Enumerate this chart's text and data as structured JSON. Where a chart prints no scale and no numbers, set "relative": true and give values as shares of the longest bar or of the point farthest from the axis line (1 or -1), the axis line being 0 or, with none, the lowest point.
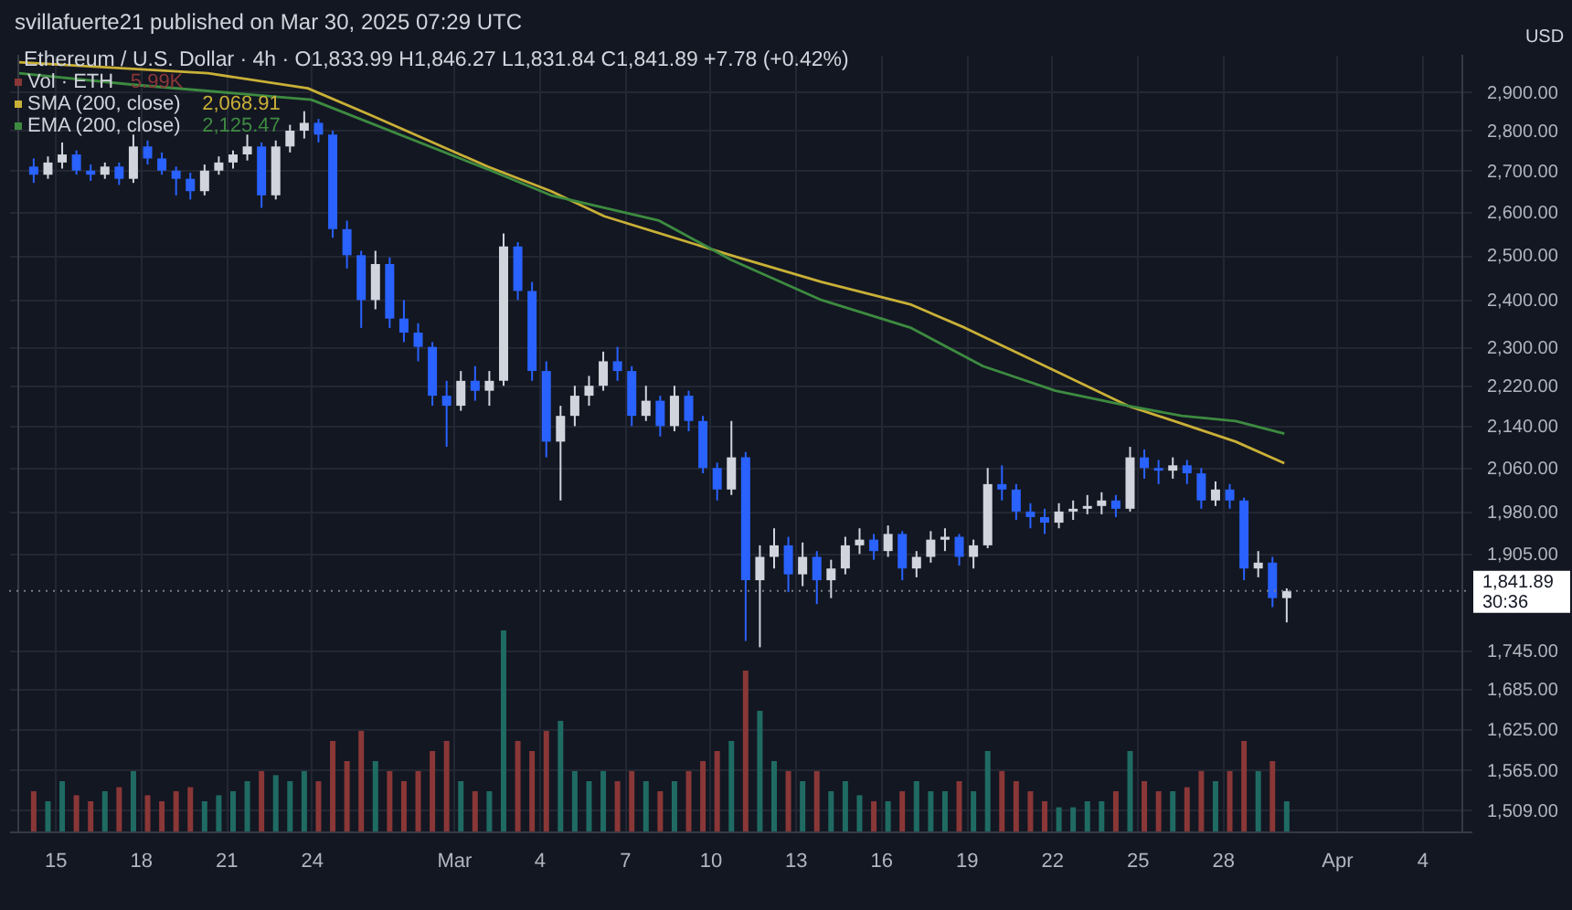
{
  "chart_data": [
    {
      "type": "candlestick",
      "title": "Ethereum / U.S. Dollar · 4h · O1,833.99 H1,846.27 L1,831.84 C1,841.89 +7.78 (+0.42%)",
      "subtitle": "svillafuerte21 published on Mar 30, 2025 07:29 UTC",
      "x": [
        "2025-02-14T06:00",
        "2025-02-14T18:00",
        "2025-02-15T06:00",
        "2025-02-15T18:00",
        "2025-02-16T06:00",
        "2025-02-16T18:00",
        "2025-02-17T06:00",
        "2025-02-17T18:00",
        "2025-02-18T06:00",
        "2025-02-18T18:00",
        "2025-02-19T06:00",
        "2025-02-19T18:00",
        "2025-02-20T06:00",
        "2025-02-20T18:00",
        "2025-02-21T06:00",
        "2025-02-21T18:00",
        "2025-02-22T06:00",
        "2025-02-22T18:00",
        "2025-02-23T06:00",
        "2025-02-23T18:00",
        "2025-02-24T06:00",
        "2025-02-24T18:00",
        "2025-02-25T06:00",
        "2025-02-25T18:00",
        "2025-02-26T06:00",
        "2025-02-26T18:00",
        "2025-02-27T06:00",
        "2025-02-27T18:00",
        "2025-02-28T06:00",
        "2025-02-28T18:00",
        "2025-03-01T06:00",
        "2025-03-01T18:00",
        "2025-03-02T06:00",
        "2025-03-02T18:00",
        "2025-03-03T06:00",
        "2025-03-03T18:00",
        "2025-03-04T06:00",
        "2025-03-04T18:00",
        "2025-03-05T06:00",
        "2025-03-05T18:00",
        "2025-03-06T06:00",
        "2025-03-06T18:00",
        "2025-03-07T06:00",
        "2025-03-07T18:00",
        "2025-03-08T06:00",
        "2025-03-08T18:00",
        "2025-03-09T06:00",
        "2025-03-09T18:00",
        "2025-03-10T06:00",
        "2025-03-10T18:00",
        "2025-03-11T06:00",
        "2025-03-11T18:00",
        "2025-03-12T06:00",
        "2025-03-12T18:00",
        "2025-03-13T06:00",
        "2025-03-13T18:00",
        "2025-03-14T06:00",
        "2025-03-14T18:00",
        "2025-03-15T06:00",
        "2025-03-15T18:00",
        "2025-03-16T06:00",
        "2025-03-16T18:00",
        "2025-03-17T06:00",
        "2025-03-17T18:00",
        "2025-03-18T06:00",
        "2025-03-18T18:00",
        "2025-03-19T06:00",
        "2025-03-19T18:00",
        "2025-03-20T06:00",
        "2025-03-20T18:00",
        "2025-03-21T06:00",
        "2025-03-21T18:00",
        "2025-03-22T06:00",
        "2025-03-22T18:00",
        "2025-03-23T06:00",
        "2025-03-23T18:00",
        "2025-03-24T06:00",
        "2025-03-24T18:00",
        "2025-03-25T06:00",
        "2025-03-25T18:00",
        "2025-03-26T06:00",
        "2025-03-26T18:00",
        "2025-03-27T06:00",
        "2025-03-27T18:00",
        "2025-03-28T06:00",
        "2025-03-28T18:00",
        "2025-03-29T06:00",
        "2025-03-29T18:00",
        "2025-03-30T06:00"
      ],
      "ohlc": [
        [
          2710,
          2730,
          2670,
          2690
        ],
        [
          2690,
          2735,
          2680,
          2720
        ],
        [
          2720,
          2770,
          2705,
          2740
        ],
        [
          2740,
          2750,
          2690,
          2700
        ],
        [
          2700,
          2715,
          2675,
          2690
        ],
        [
          2690,
          2720,
          2680,
          2710
        ],
        [
          2710,
          2720,
          2665,
          2680
        ],
        [
          2680,
          2790,
          2670,
          2760
        ],
        [
          2760,
          2775,
          2715,
          2730
        ],
        [
          2730,
          2745,
          2690,
          2700
        ],
        [
          2700,
          2710,
          2640,
          2680
        ],
        [
          2680,
          2695,
          2630,
          2650
        ],
        [
          2650,
          2715,
          2640,
          2700
        ],
        [
          2700,
          2735,
          2690,
          2720
        ],
        [
          2720,
          2750,
          2705,
          2740
        ],
        [
          2740,
          2790,
          2725,
          2760
        ],
        [
          2760,
          2770,
          2610,
          2640
        ],
        [
          2640,
          2775,
          2630,
          2760
        ],
        [
          2760,
          2815,
          2745,
          2800
        ],
        [
          2800,
          2850,
          2780,
          2820
        ],
        [
          2820,
          2830,
          2770,
          2790
        ],
        [
          2790,
          2800,
          2540,
          2560
        ],
        [
          2560,
          2580,
          2470,
          2500
        ],
        [
          2500,
          2510,
          2340,
          2400
        ],
        [
          2400,
          2510,
          2380,
          2480
        ],
        [
          2480,
          2495,
          2340,
          2360
        ],
        [
          2360,
          2400,
          2310,
          2330
        ],
        [
          2330,
          2350,
          2270,
          2300
        ],
        [
          2300,
          2310,
          2180,
          2200
        ],
        [
          2200,
          2230,
          2100,
          2180
        ],
        [
          2180,
          2250,
          2170,
          2230
        ],
        [
          2230,
          2260,
          2190,
          2210
        ],
        [
          2210,
          2250,
          2180,
          2230
        ],
        [
          2230,
          2550,
          2220,
          2520
        ],
        [
          2520,
          2530,
          2400,
          2420
        ],
        [
          2420,
          2440,
          2230,
          2250
        ],
        [
          2250,
          2270,
          2080,
          2110
        ],
        [
          2110,
          2180,
          2000,
          2160
        ],
        [
          2160,
          2220,
          2140,
          2200
        ],
        [
          2200,
          2240,
          2180,
          2220
        ],
        [
          2220,
          2290,
          2210,
          2270
        ],
        [
          2270,
          2300,
          2230,
          2250
        ],
        [
          2250,
          2260,
          2140,
          2160
        ],
        [
          2160,
          2220,
          2150,
          2190
        ],
        [
          2190,
          2200,
          2120,
          2140
        ],
        [
          2140,
          2220,
          2130,
          2200
        ],
        [
          2200,
          2210,
          2130,
          2150
        ],
        [
          2150,
          2160,
          2050,
          2060
        ],
        [
          2060,
          2070,
          2000,
          2020
        ],
        [
          2020,
          2150,
          2010,
          2080
        ],
        [
          2080,
          2090,
          1760,
          1860
        ],
        [
          1860,
          1920,
          1750,
          1900
        ],
        [
          1900,
          1950,
          1880,
          1920
        ],
        [
          1920,
          1935,
          1840,
          1870
        ],
        [
          1870,
          1925,
          1850,
          1900
        ],
        [
          1900,
          1910,
          1820,
          1860
        ],
        [
          1860,
          1895,
          1830,
          1880
        ],
        [
          1880,
          1935,
          1870,
          1920
        ],
        [
          1920,
          1950,
          1905,
          1930
        ],
        [
          1930,
          1940,
          1895,
          1910
        ],
        [
          1910,
          1955,
          1900,
          1940
        ],
        [
          1940,
          1945,
          1860,
          1880
        ],
        [
          1880,
          1910,
          1865,
          1900
        ],
        [
          1900,
          1945,
          1890,
          1930
        ],
        [
          1930,
          1950,
          1910,
          1935
        ],
        [
          1935,
          1940,
          1885,
          1900
        ],
        [
          1900,
          1930,
          1880,
          1920
        ],
        [
          1920,
          2060,
          1915,
          2030
        ],
        [
          2030,
          2065,
          2000,
          2020
        ],
        [
          2020,
          2030,
          1965,
          1980
        ],
        [
          1980,
          1995,
          1950,
          1970
        ],
        [
          1970,
          1985,
          1940,
          1960
        ],
        [
          1960,
          1995,
          1950,
          1980
        ],
        [
          1980,
          2000,
          1965,
          1985
        ],
        [
          1985,
          2010,
          1975,
          1990
        ],
        [
          1990,
          2015,
          1975,
          2000
        ],
        [
          2000,
          2010,
          1970,
          1985
        ],
        [
          1985,
          2100,
          1980,
          2080
        ],
        [
          2080,
          2095,
          2040,
          2060
        ],
        [
          2060,
          2075,
          2030,
          2055
        ],
        [
          2055,
          2080,
          2040,
          2065
        ],
        [
          2065,
          2075,
          2030,
          2050
        ],
        [
          2050,
          2060,
          1985,
          2000
        ],
        [
          2000,
          2035,
          1990,
          2020
        ],
        [
          2020,
          2030,
          1985,
          2000
        ],
        [
          2000,
          2005,
          1860,
          1880
        ],
        [
          1880,
          1910,
          1865,
          1890
        ],
        [
          1890,
          1900,
          1815,
          1830
        ],
        [
          1830,
          1846.27,
          1790,
          1841.89
        ]
      ],
      "colors": [
        "#2962ff",
        "#d1d4dc",
        "#d1d4dc",
        "#2962ff",
        "#2962ff",
        "#d1d4dc",
        "#2962ff",
        "#d1d4dc",
        "#2962ff",
        "#2962ff",
        "#2962ff",
        "#2962ff",
        "#d1d4dc",
        "#d1d4dc",
        "#d1d4dc",
        "#d1d4dc",
        "#2962ff",
        "#d1d4dc",
        "#d1d4dc",
        "#d1d4dc",
        "#2962ff",
        "#2962ff",
        "#2962ff",
        "#2962ff",
        "#d1d4dc",
        "#2962ff",
        "#2962ff",
        "#2962ff",
        "#2962ff",
        "#2962ff",
        "#d1d4dc",
        "#2962ff",
        "#d1d4dc",
        "#d1d4dc",
        "#2962ff",
        "#2962ff",
        "#2962ff",
        "#d1d4dc",
        "#d1d4dc",
        "#d1d4dc",
        "#d1d4dc",
        "#2962ff",
        "#2962ff",
        "#d1d4dc",
        "#2962ff",
        "#d1d4dc",
        "#2962ff",
        "#2962ff",
        "#2962ff",
        "#d1d4dc",
        "#2962ff",
        "#d1d4dc",
        "#d1d4dc",
        "#2962ff",
        "#d1d4dc",
        "#2962ff",
        "#d1d4dc",
        "#d1d4dc",
        "#d1d4dc",
        "#2962ff",
        "#d1d4dc",
        "#2962ff",
        "#d1d4dc",
        "#d1d4dc",
        "#d1d4dc",
        "#2962ff",
        "#d1d4dc",
        "#d1d4dc",
        "#2962ff",
        "#2962ff",
        "#2962ff",
        "#2962ff",
        "#d1d4dc",
        "#d1d4dc",
        "#d1d4dc",
        "#d1d4dc",
        "#2962ff",
        "#d1d4dc",
        "#2962ff",
        "#2962ff",
        "#d1d4dc",
        "#2962ff",
        "#2962ff",
        "#d1d4dc",
        "#2962ff",
        "#2962ff",
        "#d1d4dc",
        "#2962ff",
        "#d1d4dc"
      ],
      "series": [
        {
          "name": "SMA (200, close)",
          "type": "line",
          "color": "#c9b037",
          "x": [
            "2025-02-13T17:30",
            "2025-02-20T09:00",
            "2025-02-23T21:00",
            "2025-02-26T02:00",
            "2025-03-02T04:30",
            "2025-03-04T10:00",
            "2025-03-06T07:00",
            "2025-03-10T17:30",
            "2025-03-13T22:00",
            "2025-03-17T01:30",
            "2025-03-18T23:00",
            "2025-03-22T03:00",
            "2025-03-24T16:00",
            "2025-03-26T13:30",
            "2025-03-28T11:00",
            "2025-03-30T04:00"
          ],
          "values": [
            2980,
            2950,
            2910,
            2840,
            2710,
            2650,
            2590,
            2500,
            2440,
            2390,
            2340,
            2250,
            2180,
            2145,
            2110,
            2068.91
          ]
        },
        {
          "name": "EMA (200, close)",
          "type": "line",
          "color": "#3d8b40",
          "x": [
            "2025-02-13T17:30",
            "2025-02-17T16:00",
            "2025-02-24T00:00",
            "2025-03-02T07:30",
            "2025-03-04T10:00",
            "2025-03-08T05:00",
            "2025-03-10T17:30",
            "2025-03-13T22:00",
            "2025-03-17T01:30",
            "2025-03-19T14:00",
            "2025-03-22T03:00",
            "2025-03-24T16:00",
            "2025-03-26T13:30",
            "2025-03-28T11:00",
            "2025-03-30T04:00"
          ],
          "values": [
            2950,
            2920,
            2880,
            2700,
            2640,
            2580,
            2490,
            2400,
            2340,
            2260,
            2210,
            2180,
            2160,
            2150,
            2125.47
          ]
        }
      ],
      "annotations": [
        "2,068.91",
        "2,125.47",
        "30:36",
        "USD"
      ],
      "ref_lines": [
        {
          "axis": "y",
          "value": 1841.89,
          "label": "1,841.89",
          "color": "#787b86",
          "line_style": "dotted"
        }
      ],
      "xlim": [
        "2025-02-13T17:00",
        "2025-04-05T10:00"
      ],
      "xticks": [
        {
          "value": "2025-02-15",
          "label": "15"
        },
        {
          "value": "2025-02-18",
          "label": "18"
        },
        {
          "value": "2025-02-21",
          "label": "21"
        },
        {
          "value": "2025-02-24",
          "label": "24"
        },
        {
          "value": "2025-03-01",
          "label": "Mar"
        },
        {
          "value": "2025-03-04",
          "label": "4"
        },
        {
          "value": "2025-03-07",
          "label": "7"
        },
        {
          "value": "2025-03-10",
          "label": "10"
        },
        {
          "value": "2025-03-13",
          "label": "13"
        },
        {
          "value": "2025-03-16",
          "label": "16"
        },
        {
          "value": "2025-03-19",
          "label": "19"
        },
        {
          "value": "2025-03-22",
          "label": "22"
        },
        {
          "value": "2025-03-25",
          "label": "25"
        },
        {
          "value": "2025-03-28",
          "label": "28"
        },
        {
          "value": "2025-04-01",
          "label": "Apr"
        },
        {
          "value": "2025-04-04",
          "label": "4"
        }
      ],
      "ylim": [
        1480,
        3000
      ],
      "log": "y",
      "yticks": [
        {
          "value": 1509,
          "label": "1,509.00"
        },
        {
          "value": 1565,
          "label": "1,565.00"
        },
        {
          "value": 1625,
          "label": "1,625.00"
        },
        {
          "value": 1685,
          "label": "1,685.00"
        },
        {
          "value": 1745,
          "label": "1,745.00"
        },
        {
          "value": 1905,
          "label": "1,905.00"
        },
        {
          "value": 1980,
          "label": "1,980.00"
        },
        {
          "value": 2060,
          "label": "2,060.00"
        },
        {
          "value": 2140,
          "label": "2,140.00"
        },
        {
          "value": 2220,
          "label": "2,220.00"
        },
        {
          "value": 2300,
          "label": "2,300.00"
        },
        {
          "value": 2400,
          "label": "2,400.00"
        },
        {
          "value": 2500,
          "label": "2,500.00"
        },
        {
          "value": 2600,
          "label": "2,600.00"
        },
        {
          "value": 2700,
          "label": "2,700.00"
        },
        {
          "value": 2800,
          "label": "2,800.00"
        },
        {
          "value": 2900,
          "label": "2,900.00"
        }
      ],
      "grid": true,
      "legend": "top left",
      "marker": "none",
      "line_style": "solid"
    },
    {
      "type": "bar",
      "relative": true,
      "legend": "top left",
      "categories": [
        null,
        null,
        null,
        null,
        null,
        null,
        null,
        null,
        null,
        null,
        null,
        null,
        null,
        null,
        null,
        null,
        null,
        null,
        null,
        null,
        null,
        null,
        null,
        null,
        null,
        null,
        null,
        null,
        null,
        null,
        null,
        null,
        null,
        null,
        null,
        null,
        null,
        null,
        null,
        null,
        null,
        null,
        null,
        null,
        null,
        null,
        null,
        null,
        null,
        null,
        null,
        null,
        null,
        null,
        null,
        null,
        null,
        null,
        null,
        null,
        null,
        null,
        null,
        null,
        null,
        null,
        null,
        null,
        null,
        null,
        null,
        null,
        null,
        null,
        null,
        null,
        null,
        null,
        null,
        null,
        null,
        null,
        null,
        null,
        null,
        null,
        null,
        null,
        null
      ],
      "series": [
        {
          "name": "Vol · ETH",
          "colors": [
            "#8a3737",
            "#1f6b64",
            "#1f6b64",
            "#8a3737",
            "#8a3737",
            "#1f6b64",
            "#8a3737",
            "#1f6b64",
            "#8a3737",
            "#8a3737",
            "#8a3737",
            "#8a3737",
            "#1f6b64",
            "#1f6b64",
            "#1f6b64",
            "#1f6b64",
            "#8a3737",
            "#1f6b64",
            "#1f6b64",
            "#1f6b64",
            "#8a3737",
            "#8a3737",
            "#8a3737",
            "#8a3737",
            "#1f6b64",
            "#8a3737",
            "#8a3737",
            "#8a3737",
            "#8a3737",
            "#8a3737",
            "#1f6b64",
            "#8a3737",
            "#1f6b64",
            "#1f6b64",
            "#8a3737",
            "#8a3737",
            "#8a3737",
            "#1f6b64",
            "#1f6b64",
            "#1f6b64",
            "#1f6b64",
            "#8a3737",
            "#8a3737",
            "#1f6b64",
            "#8a3737",
            "#1f6b64",
            "#8a3737",
            "#8a3737",
            "#8a3737",
            "#1f6b64",
            "#8a3737",
            "#1f6b64",
            "#1f6b64",
            "#8a3737",
            "#1f6b64",
            "#8a3737",
            "#1f6b64",
            "#1f6b64",
            "#1f6b64",
            "#8a3737",
            "#1f6b64",
            "#8a3737",
            "#1f6b64",
            "#1f6b64",
            "#1f6b64",
            "#8a3737",
            "#1f6b64",
            "#1f6b64",
            "#8a3737",
            "#8a3737",
            "#8a3737",
            "#8a3737",
            "#1f6b64",
            "#1f6b64",
            "#1f6b64",
            "#1f6b64",
            "#8a3737",
            "#1f6b64",
            "#8a3737",
            "#8a3737",
            "#1f6b64",
            "#8a3737",
            "#8a3737",
            "#1f6b64",
            "#8a3737",
            "#8a3737",
            "#1f6b64",
            "#8a3737",
            "#1f6b64"
          ],
          "values": [
            0.2,
            0.15,
            0.25,
            0.18,
            0.15,
            0.2,
            0.22,
            0.3,
            0.18,
            0.15,
            0.2,
            0.22,
            0.15,
            0.18,
            0.2,
            0.25,
            0.3,
            0.28,
            0.25,
            0.3,
            0.25,
            0.45,
            0.35,
            0.5,
            0.35,
            0.3,
            0.25,
            0.3,
            0.4,
            0.45,
            0.25,
            0.2,
            0.2,
            1.0,
            0.45,
            0.4,
            0.5,
            0.55,
            0.3,
            0.25,
            0.3,
            0.25,
            0.3,
            0.25,
            0.2,
            0.25,
            0.3,
            0.35,
            0.4,
            0.45,
            0.8,
            0.6,
            0.35,
            0.3,
            0.25,
            0.3,
            0.2,
            0.25,
            0.18,
            0.15,
            0.15,
            0.2,
            0.25,
            0.2,
            0.2,
            0.25,
            0.2,
            0.4,
            0.3,
            0.25,
            0.2,
            0.15,
            0.12,
            0.12,
            0.15,
            0.15,
            0.2,
            0.4,
            0.25,
            0.2,
            0.2,
            0.22,
            0.3,
            0.25,
            0.3,
            0.45,
            0.3,
            0.35,
            0.15
          ]
        }
      ],
      "annotations": [
        "5.99K"
      ]
    }
  ]
}
